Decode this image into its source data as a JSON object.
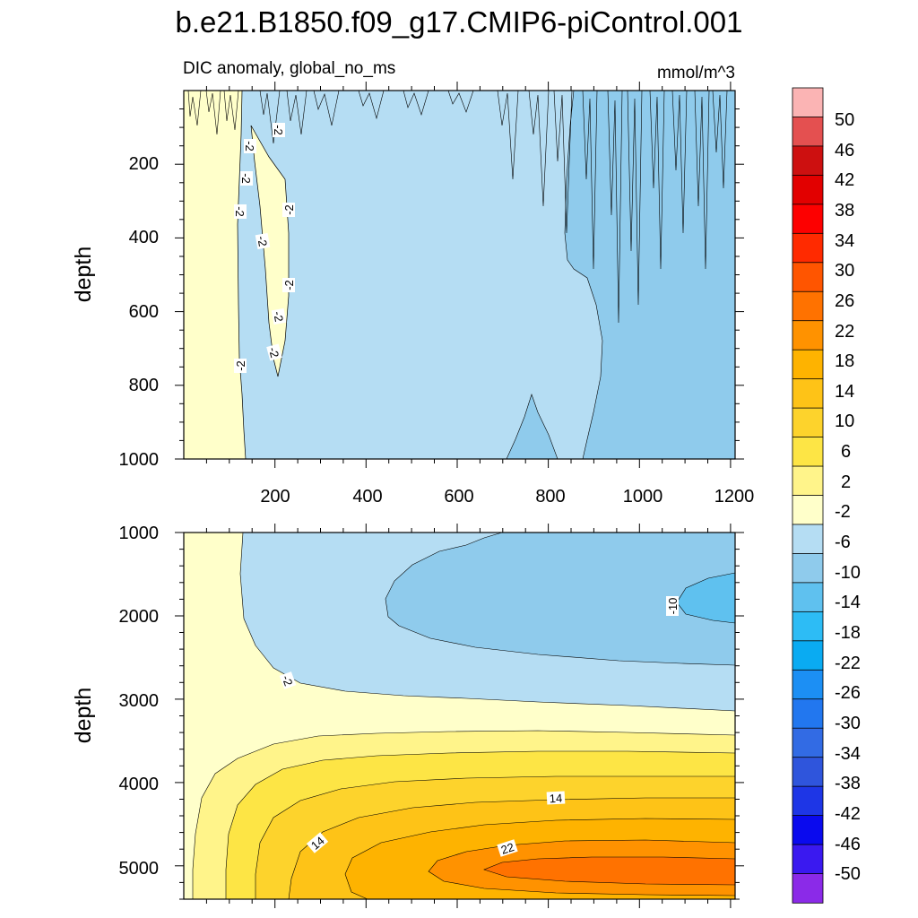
{
  "chart_data": {
    "type": "contour",
    "title": "b.e21.B1850.f09_g17.CMIP6-piControl.001",
    "left_string": "DIC anomaly, global_no_ms",
    "right_string": "mmol/m^3",
    "colorbar": {
      "levels": [
        "50",
        "46",
        "42",
        "38",
        "34",
        "30",
        "26",
        "22",
        "18",
        "14",
        "10",
        "6",
        "2",
        "-2",
        "-6",
        "-10",
        "-14",
        "-18",
        "-22",
        "-26",
        "-30",
        "-34",
        "-38",
        "-42",
        "-46",
        "-50"
      ],
      "colors": [
        "#fbb4b4",
        "#e45050",
        "#cd1010",
        "#e20000",
        "#fd0000",
        "#ff2a00",
        "#ff5500",
        "#ff7200",
        "#ff9200",
        "#feb300",
        "#fec317",
        "#fdd32c",
        "#fde545",
        "#fff48a",
        "#ffffca",
        "#b5ddf3",
        "#8fcbec",
        "#5fc1ef",
        "#2dbcf5",
        "#0aabf2",
        "#1c8ff4",
        "#2277ef",
        "#326be4",
        "#2f55dc",
        "#1e36e6",
        "#0a0aee",
        "#3a19f0",
        "#8b2ae8"
      ]
    },
    "panels": [
      {
        "name": "upper",
        "ylabel": "depth",
        "xlim": [
          0,
          1210
        ],
        "ylim": [
          0,
          1000
        ],
        "xticks": [
          "200",
          "400",
          "600",
          "800",
          "1000",
          "1200"
        ],
        "yticks": [
          "200",
          "400",
          "600",
          "800",
          "1000"
        ],
        "contour_labels": [
          "-2",
          "-2",
          "-2",
          "-2",
          "-2",
          "-2",
          "-2",
          "-2",
          "-2",
          "-2"
        ]
      },
      {
        "name": "lower",
        "ylabel": "depth",
        "xlim": [
          0,
          1210
        ],
        "ylim": [
          1000,
          5400
        ],
        "yticks": [
          "1000",
          "2000",
          "3000",
          "4000",
          "5000"
        ],
        "contour_labels": [
          "-10",
          "-2",
          "14",
          "14",
          "22"
        ]
      }
    ]
  }
}
